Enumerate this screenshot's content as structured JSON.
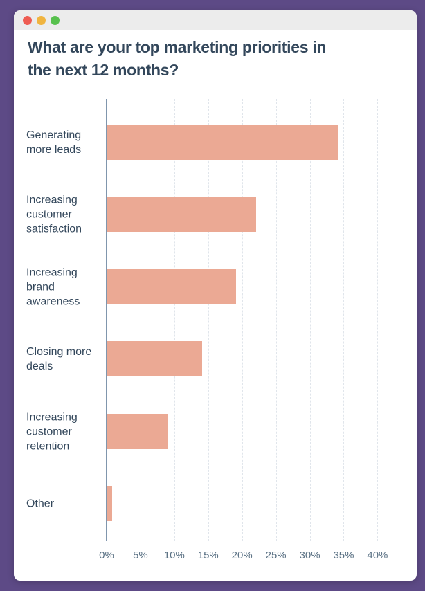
{
  "colors": {
    "frame_background": "#5d4a86",
    "window_background": "#ffffff",
    "titlebar_background": "#ececec",
    "traffic_close": "#ee5c52",
    "traffic_minimize": "#f0b43f",
    "traffic_zoom": "#58c14e",
    "bar_fill": "#eba994",
    "axis_line": "#8096ad",
    "gridline": "#e0e5eb",
    "title_text": "#33475b",
    "category_text": "#33475b",
    "tick_text": "#5a7184"
  },
  "window": {
    "traffic_lights": [
      "close",
      "minimize",
      "zoom"
    ]
  },
  "chart_data": {
    "type": "bar",
    "orientation": "horizontal",
    "title": "What are your top marketing priorities in the next 12 months?",
    "categories": [
      "Generating more leads",
      "Increasing customer satisfaction",
      "Increasing brand awareness",
      "Closing more deals",
      "Increasing customer retention",
      "Other"
    ],
    "values": [
      34,
      22,
      19,
      14,
      9,
      0.7
    ],
    "value_unit": "percent",
    "x_ticks": [
      "0%",
      "5%",
      "10%",
      "15%",
      "20%",
      "25%",
      "30%",
      "35%",
      "40%"
    ],
    "xlim": [
      0,
      40
    ],
    "grid": "vertical-dashed",
    "legend": "none",
    "xlabel": "",
    "ylabel": ""
  }
}
